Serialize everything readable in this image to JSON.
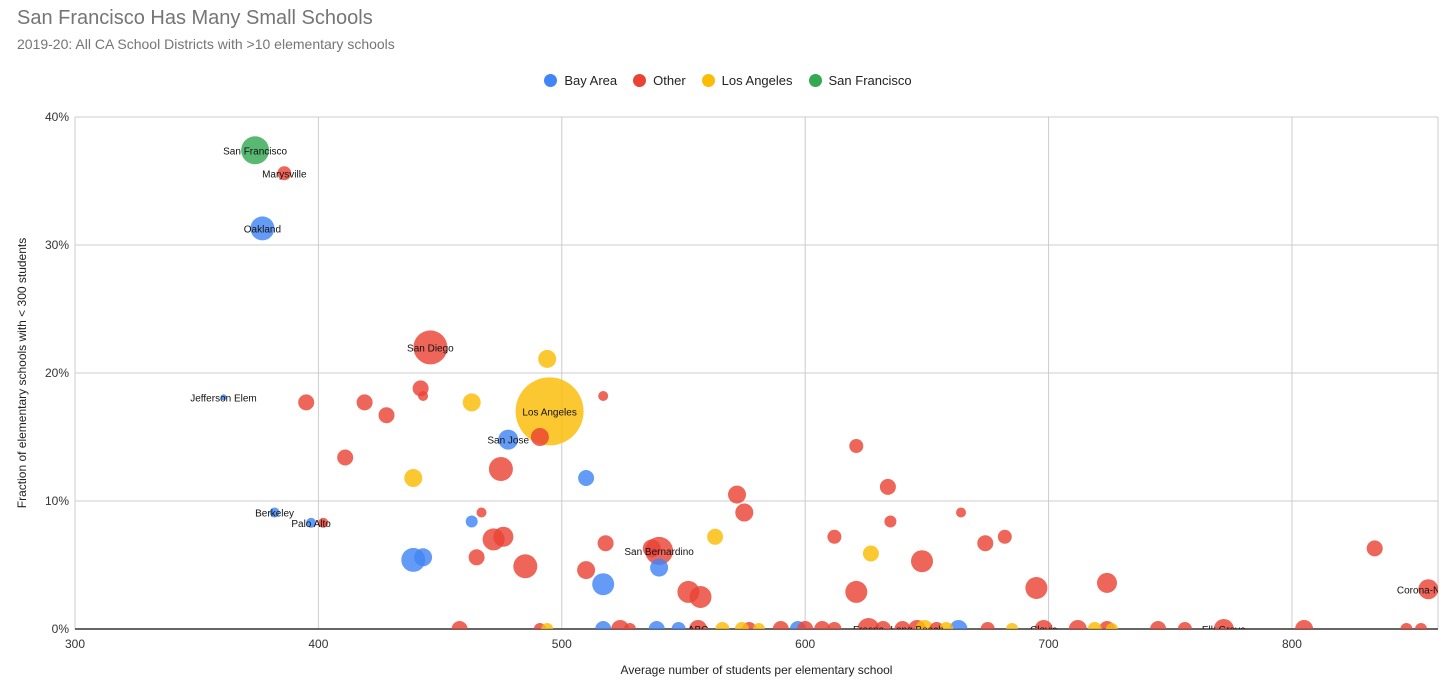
{
  "header": {
    "title": "San Francisco Has Many Small Schools",
    "subtitle": "2019-20: All CA School Districts with >10 elementary schools"
  },
  "chart_data": {
    "type": "scatter",
    "title": "San Francisco Has Many Small Schools",
    "subtitle": "2019-20: All CA School Districts with >10 elementary schools",
    "xlabel": "Average number of students per elementary school",
    "ylabel": "Fraction of elementary schools with < 300 students",
    "xlim": [
      300,
      860
    ],
    "ylim": [
      0,
      0.4
    ],
    "x_ticks": [
      300,
      400,
      500,
      600,
      700,
      800
    ],
    "y_ticks": [
      0,
      0.1,
      0.2,
      0.3,
      0.4
    ],
    "x_tick_labels": [
      "300",
      "400",
      "500",
      "600",
      "700",
      "800"
    ],
    "y_tick_labels": [
      "0%",
      "10%",
      "20%",
      "30%",
      "40%"
    ],
    "grid": true,
    "legend_position": "top",
    "series_colors": {
      "Bay Area": "#4285F4",
      "Other": "#EA4335",
      "Los Angeles": "#FBBC04",
      "San Francisco": "#34A853"
    },
    "series": [
      {
        "name": "Bay Area",
        "points": [
          {
            "x": 377,
            "y": 0.313,
            "r": 12,
            "label": "Oakland"
          },
          {
            "x": 361,
            "y": 0.181,
            "r": 3,
            "label": "Jefferson Elem"
          },
          {
            "x": 478,
            "y": 0.148,
            "r": 10,
            "label": "San Jose"
          },
          {
            "x": 510,
            "y": 0.118,
            "r": 8
          },
          {
            "x": 382,
            "y": 0.091,
            "r": 5,
            "label": "Berkeley"
          },
          {
            "x": 397,
            "y": 0.083,
            "r": 5,
            "label": "Palo Alto"
          },
          {
            "x": 463,
            "y": 0.084,
            "r": 6
          },
          {
            "x": 439,
            "y": 0.054,
            "r": 12
          },
          {
            "x": 443,
            "y": 0.056,
            "r": 9
          },
          {
            "x": 517,
            "y": 0.035,
            "r": 11
          },
          {
            "x": 540,
            "y": 0.048,
            "r": 9
          },
          {
            "x": 517,
            "y": 0.0,
            "r": 8
          },
          {
            "x": 539,
            "y": 0.0,
            "r": 8
          },
          {
            "x": 548,
            "y": 0.0,
            "r": 7
          },
          {
            "x": 597,
            "y": 0.0,
            "r": 8
          },
          {
            "x": 663,
            "y": 0.0,
            "r": 9
          }
        ]
      },
      {
        "name": "Other",
        "points": [
          {
            "x": 386,
            "y": 0.356,
            "r": 7,
            "label": "Marysville"
          },
          {
            "x": 446,
            "y": 0.22,
            "r": 17,
            "label": "San Diego"
          },
          {
            "x": 442,
            "y": 0.188,
            "r": 8
          },
          {
            "x": 443,
            "y": 0.182,
            "r": 5
          },
          {
            "x": 395,
            "y": 0.177,
            "r": 8
          },
          {
            "x": 419,
            "y": 0.177,
            "r": 8
          },
          {
            "x": 428,
            "y": 0.167,
            "r": 8
          },
          {
            "x": 411,
            "y": 0.134,
            "r": 8
          },
          {
            "x": 517,
            "y": 0.182,
            "r": 5
          },
          {
            "x": 491,
            "y": 0.15,
            "r": 9
          },
          {
            "x": 475,
            "y": 0.125,
            "r": 12
          },
          {
            "x": 402,
            "y": 0.083,
            "r": 5
          },
          {
            "x": 467,
            "y": 0.091,
            "r": 5
          },
          {
            "x": 472,
            "y": 0.07,
            "r": 11
          },
          {
            "x": 476,
            "y": 0.072,
            "r": 10
          },
          {
            "x": 465,
            "y": 0.056,
            "r": 8
          },
          {
            "x": 485,
            "y": 0.049,
            "r": 12
          },
          {
            "x": 510,
            "y": 0.046,
            "r": 9
          },
          {
            "x": 518,
            "y": 0.067,
            "r": 8
          },
          {
            "x": 537,
            "y": 0.063,
            "r": 9
          },
          {
            "x": 540,
            "y": 0.061,
            "r": 14,
            "label": "San Bernardino"
          },
          {
            "x": 572,
            "y": 0.105,
            "r": 9
          },
          {
            "x": 575,
            "y": 0.091,
            "r": 9
          },
          {
            "x": 621,
            "y": 0.143,
            "r": 7
          },
          {
            "x": 634,
            "y": 0.111,
            "r": 8
          },
          {
            "x": 635,
            "y": 0.084,
            "r": 6
          },
          {
            "x": 664,
            "y": 0.091,
            "r": 5
          },
          {
            "x": 612,
            "y": 0.072,
            "r": 7
          },
          {
            "x": 621,
            "y": 0.029,
            "r": 11
          },
          {
            "x": 648,
            "y": 0.053,
            "r": 11
          },
          {
            "x": 674,
            "y": 0.067,
            "r": 8
          },
          {
            "x": 682,
            "y": 0.072,
            "r": 7
          },
          {
            "x": 695,
            "y": 0.032,
            "r": 11
          },
          {
            "x": 724,
            "y": 0.036,
            "r": 10
          },
          {
            "x": 552,
            "y": 0.029,
            "r": 11
          },
          {
            "x": 557,
            "y": 0.025,
            "r": 11
          },
          {
            "x": 834,
            "y": 0.063,
            "r": 8
          },
          {
            "x": 856,
            "y": 0.031,
            "r": 10,
            "label": "Corona-Norco"
          },
          {
            "x": 458,
            "y": 0.0,
            "r": 8
          },
          {
            "x": 491,
            "y": 0.0,
            "r": 6
          },
          {
            "x": 524,
            "y": 0.0,
            "r": 9
          },
          {
            "x": 528,
            "y": 0.0,
            "r": 6
          },
          {
            "x": 556,
            "y": 0.0,
            "r": 9,
            "label": "ABC"
          },
          {
            "x": 577,
            "y": 0.0,
            "r": 7
          },
          {
            "x": 590,
            "y": 0.0,
            "r": 8
          },
          {
            "x": 600,
            "y": 0.0,
            "r": 8
          },
          {
            "x": 607,
            "y": 0.0,
            "r": 8
          },
          {
            "x": 612,
            "y": 0.0,
            "r": 7
          },
          {
            "x": 626,
            "y": 0.0,
            "r": 11,
            "label": "Fresno"
          },
          {
            "x": 632,
            "y": 0.0,
            "r": 8
          },
          {
            "x": 640,
            "y": 0.0,
            "r": 8
          },
          {
            "x": 646,
            "y": 0.0,
            "r": 9,
            "label": "Long Beach"
          },
          {
            "x": 654,
            "y": 0.0,
            "r": 7
          },
          {
            "x": 675,
            "y": 0.0,
            "r": 7
          },
          {
            "x": 698,
            "y": 0.0,
            "r": 9,
            "label": "Clovis"
          },
          {
            "x": 712,
            "y": 0.0,
            "r": 9
          },
          {
            "x": 724,
            "y": 0.0,
            "r": 8
          },
          {
            "x": 745,
            "y": 0.0,
            "r": 8
          },
          {
            "x": 756,
            "y": 0.0,
            "r": 7
          },
          {
            "x": 772,
            "y": 0.0,
            "r": 10,
            "label": "Elk Grove"
          },
          {
            "x": 805,
            "y": 0.0,
            "r": 9
          },
          {
            "x": 847,
            "y": 0.0,
            "r": 6
          },
          {
            "x": 853,
            "y": 0.0,
            "r": 6
          }
        ]
      },
      {
        "name": "Los Angeles",
        "points": [
          {
            "x": 495,
            "y": 0.17,
            "r": 34,
            "label": "Los Angeles"
          },
          {
            "x": 494,
            "y": 0.211,
            "r": 9
          },
          {
            "x": 463,
            "y": 0.177,
            "r": 9
          },
          {
            "x": 439,
            "y": 0.118,
            "r": 9
          },
          {
            "x": 563,
            "y": 0.072,
            "r": 8
          },
          {
            "x": 627,
            "y": 0.059,
            "r": 8
          },
          {
            "x": 494,
            "y": 0.0,
            "r": 6
          },
          {
            "x": 566,
            "y": 0.0,
            "r": 7
          },
          {
            "x": 574,
            "y": 0.0,
            "r": 7
          },
          {
            "x": 581,
            "y": 0.0,
            "r": 6
          },
          {
            "x": 649,
            "y": 0.0,
            "r": 9
          },
          {
            "x": 658,
            "y": 0.0,
            "r": 7
          },
          {
            "x": 685,
            "y": 0.0,
            "r": 6
          },
          {
            "x": 719,
            "y": 0.0,
            "r": 7
          },
          {
            "x": 726,
            "y": 0.0,
            "r": 6
          }
        ]
      },
      {
        "name": "San Francisco",
        "points": [
          {
            "x": 374,
            "y": 0.374,
            "r": 14,
            "label": "San Francisco"
          }
        ]
      }
    ]
  }
}
